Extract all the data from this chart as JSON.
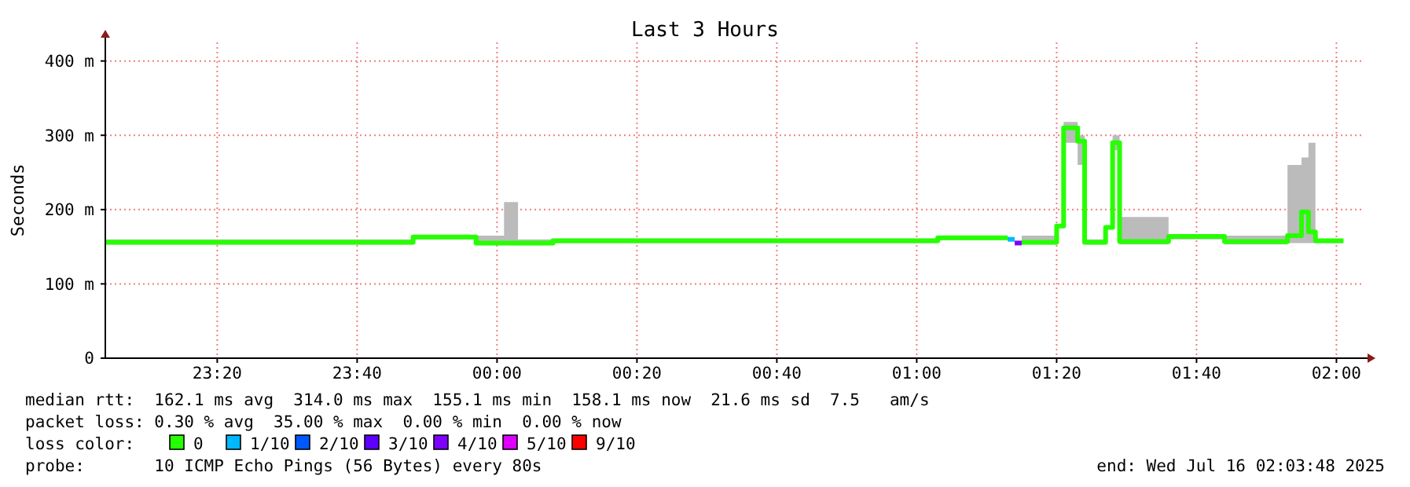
{
  "chart_data": {
    "type": "step",
    "title": "Last 3 Hours",
    "ylabel": "Seconds",
    "legend_title": "loss color:",
    "x": [
      "2025-07-15T23:04",
      "2025-07-15T23:48",
      "2025-07-15T23:57",
      "2025-07-16T00:01",
      "2025-07-16T00:03",
      "2025-07-16T00:08",
      "2025-07-16T01:03",
      "2025-07-16T01:13",
      "2025-07-16T01:14",
      "2025-07-16T01:15",
      "2025-07-16T01:20",
      "2025-07-16T01:21",
      "2025-07-16T01:23",
      "2025-07-16T01:24",
      "2025-07-16T01:27",
      "2025-07-16T01:28",
      "2025-07-16T01:29",
      "2025-07-16T01:36",
      "2025-07-16T01:44",
      "2025-07-16T01:53",
      "2025-07-16T01:55",
      "2025-07-16T01:56",
      "2025-07-16T01:57",
      "2025-07-16T02:01"
    ],
    "series": [
      {
        "name": "0",
        "color": "#26ff00",
        "values": [
          156,
          163,
          155,
          155,
          155,
          158,
          162,
          162,
          null,
          156,
          178,
          310,
          292,
          156,
          176,
          290,
          157,
          164,
          157,
          165,
          197,
          170,
          158,
          158
        ],
        "lower": [
          153,
          160,
          153,
          153,
          153,
          155,
          159,
          null,
          null,
          153,
          null,
          290,
          260,
          153,
          null,
          280,
          153,
          160,
          153,
          155,
          155,
          155,
          155,
          155
        ],
        "upper": [
          160,
          166,
          165,
          210,
          160,
          161,
          165,
          null,
          null,
          165,
          null,
          318,
          300,
          160,
          null,
          300,
          190,
          167,
          165,
          260,
          270,
          290,
          160,
          160
        ]
      },
      {
        "name": "1/10",
        "color": "#00b8ff",
        "values": [
          null,
          null,
          null,
          null,
          null,
          null,
          null,
          160,
          160,
          null,
          null,
          null,
          null,
          null,
          null,
          null,
          null,
          null,
          null,
          null,
          null,
          null,
          null,
          null
        ]
      },
      {
        "name": "2/10",
        "color": "#0059ff",
        "values": [
          null,
          null,
          null,
          null,
          null,
          null,
          null,
          null,
          null,
          null,
          null,
          null,
          null,
          null,
          null,
          null,
          null,
          null,
          null,
          null,
          null,
          null,
          null,
          null
        ]
      },
      {
        "name": "3/10",
        "color": "#5e00ff",
        "values": [
          null,
          null,
          null,
          null,
          null,
          null,
          null,
          null,
          null,
          null,
          null,
          null,
          null,
          null,
          null,
          null,
          null,
          null,
          null,
          null,
          null,
          null,
          null,
          null
        ]
      },
      {
        "name": "4/10",
        "color": "#7e00ff",
        "values": [
          null,
          null,
          null,
          null,
          null,
          null,
          null,
          null,
          155,
          155,
          null,
          null,
          null,
          null,
          null,
          null,
          null,
          null,
          null,
          null,
          null,
          null,
          null,
          null
        ]
      },
      {
        "name": "5/10",
        "color": "#dd00ff",
        "values": [
          null,
          null,
          null,
          null,
          null,
          null,
          null,
          null,
          null,
          null,
          null,
          null,
          null,
          null,
          null,
          null,
          null,
          null,
          null,
          null,
          null,
          null,
          null,
          null
        ]
      },
      {
        "name": "9/10",
        "color": "#ff0000",
        "values": [
          null,
          null,
          null,
          null,
          null,
          null,
          null,
          null,
          null,
          null,
          null,
          null,
          null,
          null,
          null,
          null,
          null,
          null,
          null,
          null,
          null,
          null,
          null,
          null
        ]
      }
    ],
    "xlim": [
      "2025-07-15T23:04",
      "2025-07-16T02:04"
    ],
    "xticks": [
      {
        "value": "2025-07-15T23:20",
        "label": "23:20"
      },
      {
        "value": "2025-07-15T23:40",
        "label": "23:40"
      },
      {
        "value": "2025-07-16T00:00",
        "label": "00:00"
      },
      {
        "value": "2025-07-16T00:20",
        "label": "00:20"
      },
      {
        "value": "2025-07-16T00:40",
        "label": "00:40"
      },
      {
        "value": "2025-07-16T01:00",
        "label": "01:00"
      },
      {
        "value": "2025-07-16T01:20",
        "label": "01:20"
      },
      {
        "value": "2025-07-16T01:40",
        "label": "01:40"
      },
      {
        "value": "2025-07-16T02:00",
        "label": "02:00"
      }
    ],
    "ylim": [
      0,
      425
    ],
    "yticks": [
      {
        "value": 0,
        "label": "0"
      },
      {
        "value": 100,
        "label": "100 m"
      },
      {
        "value": 200,
        "label": "200 m"
      },
      {
        "value": 300,
        "label": "300 m"
      },
      {
        "value": 400,
        "label": "400 m"
      }
    ],
    "grid": true,
    "legend": "bottom",
    "annotations": [
      "median rtt:  162.1 ms avg  314.0 ms max  155.1 ms min  158.1 ms now  21.6 ms sd  7.5   am/s",
      "packet loss: 0.30 % avg  35.00 % max  0.00 % min  0.00 % now",
      "probe:       10 ICMP Echo Pings (56 Bytes) every 80s",
      "end: Wed Jul 16 02:03:48 2025"
    ]
  }
}
